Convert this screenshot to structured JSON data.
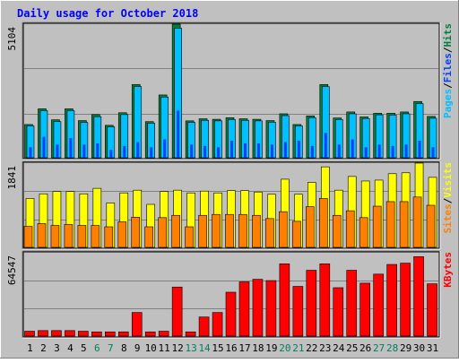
{
  "title": "Daily usage for October 2018",
  "colors": {
    "background": "#C0C0C0",
    "title": "#0000FF",
    "pages": "#00C0FF",
    "files": "#0040FF",
    "hits": "#008040",
    "visits": "#FFFF00",
    "sites": "#FF8000",
    "kbytes": "#FF0000",
    "weekday_label": "#000000",
    "weekend_label": "#00805C"
  },
  "chart_data": [
    {
      "type": "bar",
      "panel": "top",
      "y_max_label": "5104",
      "ylim": [
        0,
        5104
      ],
      "axis_label_parts": [
        "Pages",
        "Files",
        "Hits"
      ],
      "categories": [
        "1",
        "2",
        "3",
        "4",
        "5",
        "6",
        "7",
        "8",
        "9",
        "10",
        "11",
        "12",
        "13",
        "14",
        "15",
        "16",
        "17",
        "18",
        "19",
        "20",
        "21",
        "22",
        "23",
        "24",
        "25",
        "26",
        "27",
        "28",
        "29",
        "30",
        "31"
      ],
      "weekend": [
        6,
        7,
        13,
        14,
        20,
        21,
        27,
        28
      ],
      "series": [
        {
          "name": "Hits",
          "values": [
            1270,
            1870,
            1450,
            1870,
            1420,
            1650,
            1240,
            1720,
            2800,
            1380,
            2400,
            5104,
            1410,
            1490,
            1470,
            1530,
            1490,
            1470,
            1420,
            1680,
            1270,
            1600,
            2800,
            1520,
            1750,
            1560,
            1700,
            1700,
            1750,
            2150,
            1580
          ]
        },
        {
          "name": "Files",
          "values": [
            1220,
            1800,
            1380,
            1800,
            1350,
            1570,
            1180,
            1650,
            2720,
            1320,
            2320,
            4950,
            1350,
            1430,
            1410,
            1460,
            1430,
            1410,
            1360,
            1610,
            1220,
            1530,
            2720,
            1460,
            1680,
            1500,
            1640,
            1630,
            1680,
            2070,
            1510
          ]
        },
        {
          "name": "Pages",
          "values": [
            400,
            800,
            500,
            750,
            500,
            550,
            300,
            450,
            600,
            400,
            700,
            1800,
            500,
            450,
            400,
            650,
            550,
            550,
            500,
            600,
            650,
            450,
            950,
            500,
            700,
            400,
            500,
            450,
            500,
            650,
            400
          ]
        }
      ]
    },
    {
      "type": "bar",
      "panel": "middle",
      "y_max_label": "1841",
      "ylim": [
        0,
        1841
      ],
      "axis_label_parts": [
        "Sites",
        "Visits"
      ],
      "categories": [
        "1",
        "2",
        "3",
        "4",
        "5",
        "6",
        "7",
        "8",
        "9",
        "10",
        "11",
        "12",
        "13",
        "14",
        "15",
        "16",
        "17",
        "18",
        "19",
        "20",
        "21",
        "22",
        "23",
        "24",
        "25",
        "26",
        "27",
        "28",
        "29",
        "30",
        "31"
      ],
      "series": [
        {
          "name": "Visits",
          "values": [
            1070,
            1170,
            1220,
            1220,
            1170,
            1290,
            970,
            1190,
            1250,
            940,
            1220,
            1250,
            1190,
            1230,
            1190,
            1240,
            1240,
            1210,
            1160,
            1490,
            1160,
            1420,
            1760,
            1250,
            1550,
            1450,
            1470,
            1610,
            1630,
            1841,
            1530
          ]
        },
        {
          "name": "Sites",
          "values": [
            460,
            520,
            480,
            500,
            480,
            480,
            450,
            560,
            660,
            450,
            650,
            700,
            450,
            700,
            720,
            720,
            720,
            700,
            630,
            780,
            570,
            890,
            1070,
            700,
            800,
            650,
            900,
            1000,
            1000,
            1100,
            920
          ]
        }
      ]
    },
    {
      "type": "bar",
      "panel": "bottom",
      "y_max_label": "64547",
      "ylim": [
        0,
        64547
      ],
      "axis_label_parts": [
        "KBytes"
      ],
      "categories": [
        "1",
        "2",
        "3",
        "4",
        "5",
        "6",
        "7",
        "8",
        "9",
        "10",
        "11",
        "12",
        "13",
        "14",
        "15",
        "16",
        "17",
        "18",
        "19",
        "20",
        "21",
        "22",
        "23",
        "24",
        "25",
        "26",
        "27",
        "28",
        "29",
        "30",
        "31"
      ],
      "series": [
        {
          "name": "KBytes",
          "values": [
            3800,
            4300,
            4300,
            4300,
            3800,
            3300,
            3300,
            3300,
            18300,
            3300,
            3800,
            38000,
            3300,
            14800,
            18300,
            34000,
            42000,
            44000,
            43000,
            56000,
            38500,
            51000,
            56000,
            37500,
            51000,
            41000,
            48000,
            55500,
            56500,
            61500,
            40500
          ]
        }
      ]
    }
  ]
}
